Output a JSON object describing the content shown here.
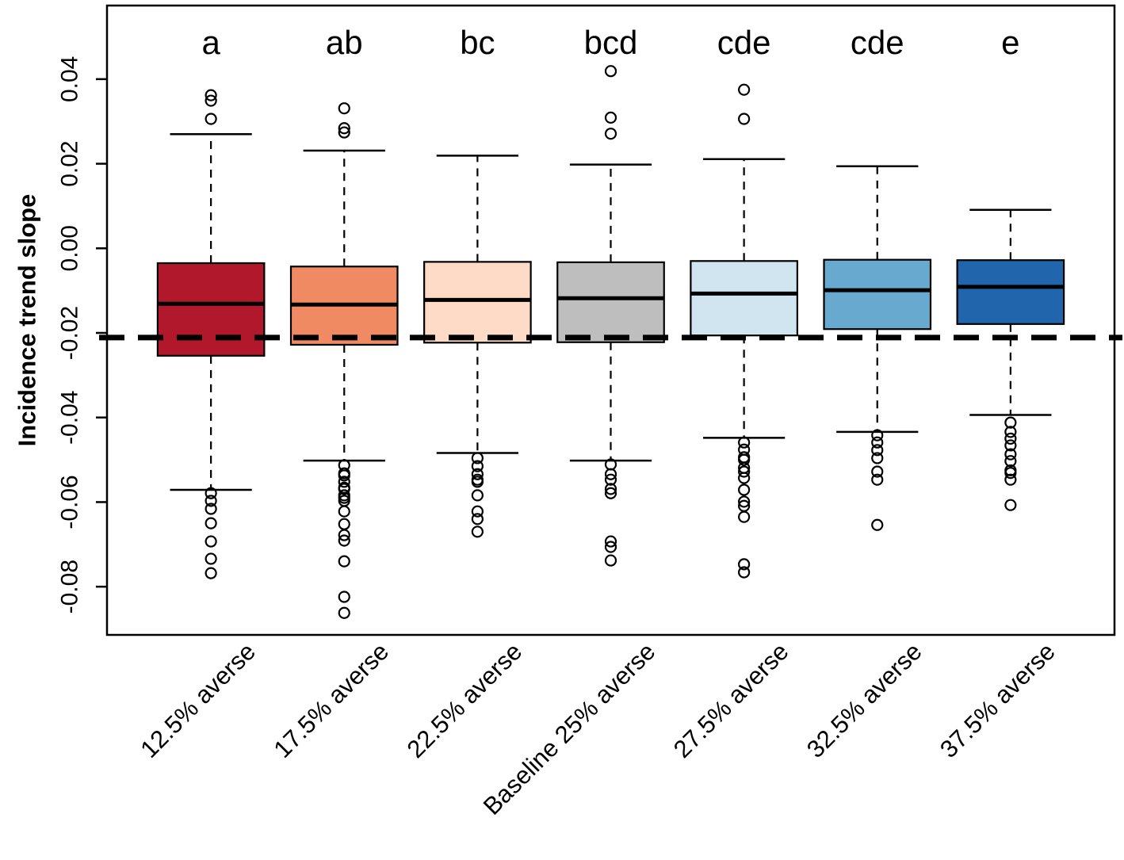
{
  "chart_data": {
    "type": "boxplot",
    "title": "",
    "xlabel": "",
    "ylabel": "Incidence trend slope",
    "ylim": [
      -0.0914,
      0.0574
    ],
    "grid": false,
    "legend": "none",
    "yticks": {
      "values": [
        0.04,
        0.02,
        0.0,
        -0.02,
        -0.04,
        -0.06,
        -0.08
      ],
      "labels": [
        "0.04",
        "0.02",
        "0.00",
        "-0.02",
        "-0.04",
        "-0.06",
        "-0.08"
      ]
    },
    "reference_line": {
      "value": -0.0211,
      "style": "bold-dashed",
      "color": "#000000"
    },
    "categories": [
      "12.5% averse",
      "17.5% averse",
      "22.5% averse",
      "Baseline 25% averse",
      "27.5% averse",
      "32.5% averse",
      "37.5% averse"
    ],
    "significance_letters": [
      "a",
      "ab",
      "bc",
      "bcd",
      "cde",
      "cde",
      "e"
    ],
    "box_colors": [
      "#B2182B",
      "#EF8A62",
      "#FDDBC7",
      "#BEBEBE",
      "#D1E5F0",
      "#67A9CF",
      "#2166AC"
    ],
    "groups": [
      {
        "label": "12.5% averse",
        "letter": "a",
        "color": "#B2182B",
        "stats": {
          "lower_whisker": -0.0571,
          "q1": -0.0254,
          "median": -0.0131,
          "q3": -0.0035,
          "upper_whisker": 0.027
        },
        "outliers_high": [
          0.0306,
          0.0349,
          0.0362
        ],
        "outliers_low": [
          -0.0579,
          -0.0597,
          -0.0616,
          -0.065,
          -0.0693,
          -0.0734,
          -0.0768
        ]
      },
      {
        "label": "17.5% averse",
        "letter": "ab",
        "color": "#EF8A62",
        "stats": {
          "lower_whisker": -0.0502,
          "q1": -0.0228,
          "median": -0.0133,
          "q3": -0.0043,
          "upper_whisker": 0.0231
        },
        "outliers_high": [
          0.0274,
          0.0284,
          0.0331
        ],
        "outliers_low": [
          -0.0513,
          -0.0532,
          -0.0537,
          -0.0552,
          -0.0566,
          -0.0569,
          -0.0584,
          -0.059,
          -0.0597,
          -0.0622,
          -0.0652,
          -0.0678,
          -0.0691,
          -0.074,
          -0.0824,
          -0.0862
        ]
      },
      {
        "label": "22.5% averse",
        "letter": "bc",
        "color": "#FDDBC7",
        "stats": {
          "lower_whisker": -0.0484,
          "q1": -0.0223,
          "median": -0.0122,
          "q3": -0.0032,
          "upper_whisker": 0.0219
        },
        "outliers_high": [],
        "outliers_low": [
          -0.0496,
          -0.0515,
          -0.0534,
          -0.0547,
          -0.0552,
          -0.0584,
          -0.0622,
          -0.064,
          -0.067
        ]
      },
      {
        "label": "Baseline 25% averse",
        "letter": "bcd",
        "color": "#BEBEBE",
        "stats": {
          "lower_whisker": -0.0502,
          "q1": -0.0222,
          "median": -0.0118,
          "q3": -0.0033,
          "upper_whisker": 0.0198
        },
        "outliers_high": [
          0.0271,
          0.0309,
          0.0419
        ],
        "outliers_low": [
          -0.0511,
          -0.0534,
          -0.0547,
          -0.0569,
          -0.0579,
          -0.0693,
          -0.0706,
          -0.0738
        ]
      },
      {
        "label": "27.5% averse",
        "letter": "cde",
        "color": "#D1E5F0",
        "stats": {
          "lower_whisker": -0.0448,
          "q1": -0.0206,
          "median": -0.0107,
          "q3": -0.003,
          "upper_whisker": 0.0211
        },
        "outliers_high": [
          0.0306,
          0.0375
        ],
        "outliers_low": [
          -0.0459,
          -0.0476,
          -0.0494,
          -0.05,
          -0.0519,
          -0.0528,
          -0.0543,
          -0.0571,
          -0.0599,
          -0.0609,
          -0.0635,
          -0.0747,
          -0.0766
        ]
      },
      {
        "label": "32.5% averse",
        "letter": "cde",
        "color": "#67A9CF",
        "stats": {
          "lower_whisker": -0.0434,
          "q1": -0.0191,
          "median": -0.0099,
          "q3": -0.0027,
          "upper_whisker": 0.0194
        },
        "outliers_high": [],
        "outliers_low": [
          -0.0442,
          -0.0459,
          -0.0477,
          -0.0496,
          -0.0528,
          -0.0547,
          -0.0654
        ]
      },
      {
        "label": "37.5% averse",
        "letter": "e",
        "color": "#2166AC",
        "stats": {
          "lower_whisker": -0.0394,
          "q1": -0.0179,
          "median": -0.0091,
          "q3": -0.0028,
          "upper_whisker": 0.0091
        },
        "outliers_high": [],
        "outliers_low": [
          -0.0412,
          -0.0434,
          -0.045,
          -0.0466,
          -0.0487,
          -0.0503,
          -0.0525,
          -0.0531,
          -0.0547,
          -0.0607
        ]
      }
    ]
  }
}
